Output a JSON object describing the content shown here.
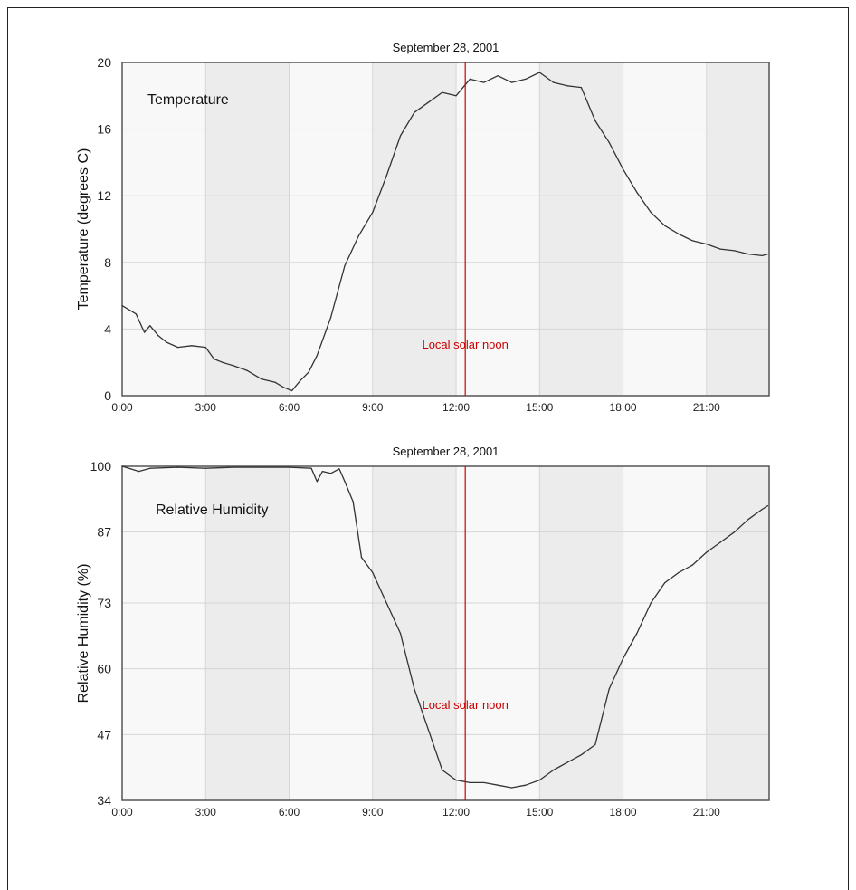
{
  "colors": {
    "series": "#333333",
    "marker": "#cc0000",
    "band_light": "#f8f8f8",
    "band_dark": "#ececec",
    "grid": "#d6d6d6",
    "frame": "#555555"
  },
  "chart_data": [
    {
      "type": "line",
      "title": "September 28, 2001",
      "inset_label": "Temperature",
      "ylabel": "Temperature (degrees C)",
      "xlabel": "",
      "xlim": [
        0,
        23.25
      ],
      "ylim": [
        0,
        20
      ],
      "xticks": [
        0,
        3,
        6,
        9,
        12,
        15,
        18,
        21
      ],
      "xtick_labels": [
        "0:00",
        "3:00",
        "6:00",
        "9:00",
        "12:00",
        "15:00",
        "18:00",
        "21:00"
      ],
      "yticks": [
        0,
        4,
        8,
        12,
        16,
        20
      ],
      "ytick_labels": [
        "0",
        "4",
        "8",
        "12",
        "16",
        "20"
      ],
      "grid": true,
      "shaded_bands_hours": [
        [
          3,
          6
        ],
        [
          9,
          12
        ],
        [
          15,
          18
        ],
        [
          21,
          23.25
        ]
      ],
      "annotation": {
        "text": "Local solar noon",
        "x": 12.33
      },
      "series": [
        {
          "x": [
            0,
            0.5,
            0.8,
            1.0,
            1.3,
            1.6,
            2.0,
            2.5,
            3.0,
            3.3,
            3.6,
            4.0,
            4.5,
            5.0,
            5.5,
            5.8,
            6.1,
            6.4,
            6.7,
            7.0,
            7.5,
            8.0,
            8.5,
            9.0,
            9.5,
            10.0,
            10.5,
            11.0,
            11.5,
            12.0,
            12.5,
            13.0,
            13.5,
            14.0,
            14.5,
            15.0,
            15.5,
            16.0,
            16.5,
            17.0,
            17.5,
            18.0,
            18.5,
            19.0,
            19.5,
            20.0,
            20.5,
            21.0,
            21.5,
            22.0,
            22.5,
            23.0,
            23.2
          ],
          "y": [
            5.4,
            4.9,
            3.8,
            4.2,
            3.6,
            3.2,
            2.9,
            3.0,
            2.9,
            2.2,
            2.0,
            1.8,
            1.5,
            1.0,
            0.8,
            0.5,
            0.3,
            0.9,
            1.4,
            2.4,
            4.7,
            7.8,
            9.6,
            11.0,
            13.2,
            15.6,
            17.0,
            17.6,
            18.2,
            18.0,
            19.0,
            18.8,
            19.2,
            18.8,
            19.0,
            19.4,
            18.8,
            18.6,
            18.5,
            16.5,
            15.2,
            13.6,
            12.2,
            11.0,
            10.2,
            9.7,
            9.3,
            9.1,
            8.8,
            8.7,
            8.5,
            8.4,
            8.5
          ]
        }
      ]
    },
    {
      "type": "line",
      "title": "September 28, 2001",
      "inset_label": "Relative Humidity",
      "ylabel": "Relative Humidity (%)",
      "xlabel": "",
      "xlim": [
        0,
        23.25
      ],
      "ylim": [
        34,
        100
      ],
      "xticks": [
        0,
        3,
        6,
        9,
        12,
        15,
        18,
        21
      ],
      "xtick_labels": [
        "0:00",
        "3:00",
        "6:00",
        "9:00",
        "12:00",
        "15:00",
        "18:00",
        "21:00"
      ],
      "yticks": [
        34,
        47,
        60,
        73,
        87,
        100
      ],
      "ytick_labels": [
        "34",
        "47",
        "60",
        "73",
        "87",
        "100"
      ],
      "grid": true,
      "shaded_bands_hours": [
        [
          3,
          6
        ],
        [
          9,
          12
        ],
        [
          15,
          18
        ],
        [
          21,
          23.25
        ]
      ],
      "annotation": {
        "text": "Local solar noon",
        "x": 12.33
      },
      "series": [
        {
          "x": [
            0,
            0.3,
            0.6,
            1.0,
            2.0,
            3.0,
            4.0,
            5.0,
            6.0,
            6.8,
            7.0,
            7.2,
            7.5,
            7.8,
            8.0,
            8.3,
            8.6,
            9.0,
            9.5,
            10.0,
            10.5,
            11.0,
            11.5,
            12.0,
            12.5,
            13.0,
            13.5,
            14.0,
            14.5,
            15.0,
            15.5,
            16.0,
            16.5,
            17.0,
            17.5,
            18.0,
            18.5,
            19.0,
            19.5,
            20.0,
            20.5,
            21.0,
            21.5,
            22.0,
            22.5,
            23.0,
            23.2
          ],
          "y": [
            100,
            99.5,
            99.0,
            99.6,
            99.8,
            99.6,
            99.8,
            99.8,
            99.8,
            99.6,
            97.0,
            99.0,
            98.6,
            99.5,
            97.0,
            93.0,
            82.0,
            79.0,
            73.0,
            67.0,
            56.0,
            48.0,
            40.0,
            38.0,
            37.5,
            37.5,
            37.0,
            36.5,
            37.0,
            38.0,
            40.0,
            41.5,
            43.0,
            45.0,
            56.0,
            62.0,
            67.0,
            73.0,
            77.0,
            79.0,
            80.5,
            83.0,
            85.0,
            87.0,
            89.5,
            91.5,
            92.2
          ]
        }
      ]
    }
  ]
}
